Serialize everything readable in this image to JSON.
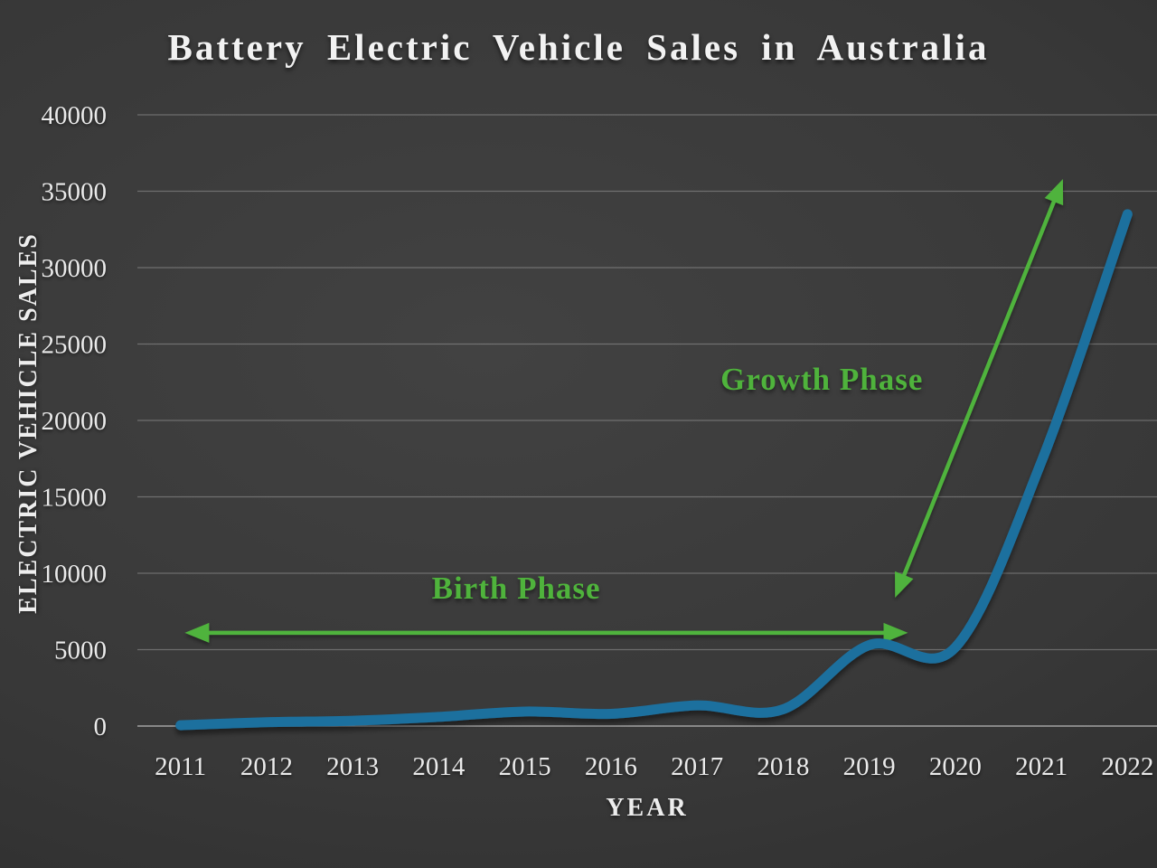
{
  "chart_data": {
    "type": "line",
    "title": "Battery Electric Vehicle Sales in Australia",
    "xlabel": "YEAR",
    "ylabel": "ELECTRIC VEHICLE SALES",
    "categories": [
      2011,
      2012,
      2013,
      2014,
      2015,
      2016,
      2017,
      2018,
      2019,
      2020,
      2021,
      2022
    ],
    "series": [
      {
        "name": "Battery electric vehicle sales",
        "values": [
          50,
          250,
          350,
          600,
          950,
          800,
          1350,
          1100,
          5300,
          5150,
          17300,
          33500
        ]
      }
    ],
    "ylim": [
      0,
      40000
    ],
    "ytick_step": 5000,
    "grid": "horizontal gridlines only",
    "legend_position": "none",
    "line_color": "#1E6F9E",
    "annotation_color": "#4FB33C",
    "annotations": [
      {
        "label": "Birth Phase",
        "label_at": {
          "year": 2014.9,
          "value": 9000
        },
        "arrow": {
          "style": "double-headed",
          "from": {
            "year": 2011.05,
            "value": 6100
          },
          "to": {
            "year": 2019.45,
            "value": 6100
          }
        }
      },
      {
        "label": "Growth Phase",
        "label_at": {
          "year": 2018.45,
          "value": 22650
        },
        "arrow": {
          "style": "double-headed",
          "from": {
            "year": 2019.3,
            "value": 8400
          },
          "to": {
            "year": 2021.25,
            "value": 35800
          }
        }
      }
    ]
  }
}
